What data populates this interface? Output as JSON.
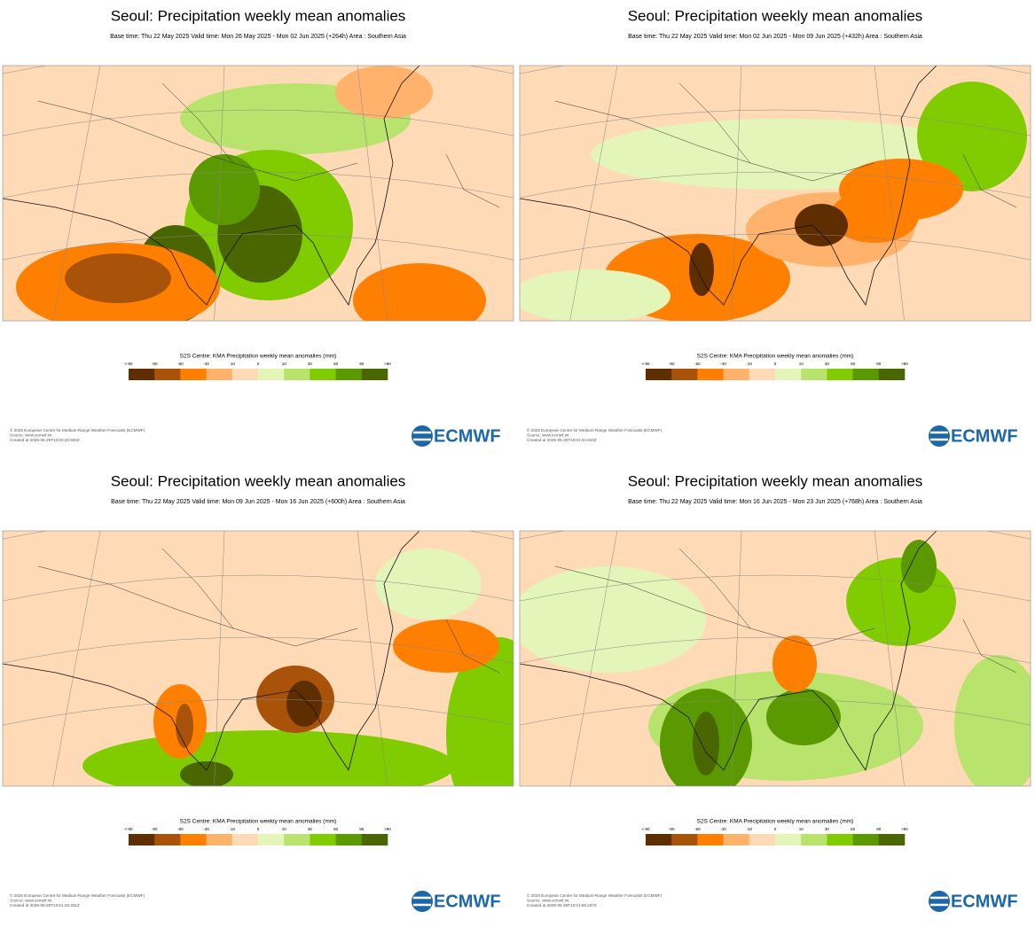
{
  "panels": [
    {
      "title": "Seoul: Precipitation weekly mean anomalies",
      "subtitle": "Base time: Thu 22 May 2025 Valid time: Mon 26 May 2025 - Mon 02 Jun 2025 (+264h) Area : Southern Asia",
      "colorbar_title": "S2S Centre: KMA Precipitation weekly mean anomalies (mm)",
      "colorbar_labels": [
        "<-90",
        "-90",
        "-60",
        "-30",
        "-10",
        "0",
        "10",
        "30",
        "60",
        "90",
        ">90"
      ],
      "colors": [
        "#5e2d00",
        "#a8520a",
        "#ff7f00",
        "#ffb26b",
        "#ffdab6",
        "#e3f5b8",
        "#b8e36c",
        "#80cc00",
        "#5a9a00",
        "#4a6600"
      ],
      "footer": [
        "© 2025 European Centre for Medium-Range Weather Forecasts (ECMWF)",
        "Source: www.ecmwf.int",
        "Created at 2025-05-28T10:00:28.925Z"
      ],
      "logo": "ECMWF"
    },
    {
      "title": "Seoul: Precipitation weekly mean anomalies",
      "subtitle": "Base time: Thu 22 May 2025 Valid time: Mon 02 Jun 2025 - Mon 09 Jun 2025 (+432h) Area : Southern Asia",
      "colorbar_title": "S2S Centre: KMA Precipitation weekly mean anomalies (mm)",
      "colorbar_labels": [
        "<-90",
        "-90",
        "-60",
        "-30",
        "-10",
        "0",
        "10",
        "30",
        "60",
        "90",
        ">90"
      ],
      "colors": [
        "#5e2d00",
        "#a8520a",
        "#ff7f00",
        "#ffb26b",
        "#ffdab6",
        "#e3f5b8",
        "#b8e36c",
        "#80cc00",
        "#5a9a00",
        "#4a6600"
      ],
      "footer": [
        "© 2025 European Centre for Medium-Range Weather Forecasts (ECMWF)",
        "Source: www.ecmwf.int",
        "Created at 2025-05-28T10:01:04.910Z"
      ],
      "logo": "ECMWF"
    },
    {
      "title": "Seoul: Precipitation weekly mean anomalies",
      "subtitle": "Base time: Thu 22 May 2025 Valid time: Mon 09 Jun 2025 - Mon 16 Jun 2025 (+600h) Area : Southern Asia",
      "colorbar_title": "S2S Centre: KMA Precipitation weekly mean anomalies (mm)",
      "colorbar_labels": [
        "<-90",
        "-90",
        "-60",
        "-30",
        "-10",
        "0",
        "10",
        "30",
        "60",
        "90",
        ">90"
      ],
      "colors": [
        "#5e2d00",
        "#a8520a",
        "#ff7f00",
        "#ffb26b",
        "#ffdab6",
        "#e3f5b8",
        "#b8e36c",
        "#80cc00",
        "#5a9a00",
        "#4a6600"
      ],
      "footer": [
        "© 2025 European Centre for Medium-Range Weather Forecasts (ECMWF)",
        "Source: www.ecmwf.int",
        "Created at 2025-05-28T10:01:28.331Z"
      ],
      "logo": "ECMWF"
    },
    {
      "title": "Seoul: Precipitation weekly mean anomalies",
      "subtitle": "Base time: Thu 22 May 2025 Valid time: Mon 16 Jun 2025 - Mon 23 Jun 2025 (+768h) Area : Southern Asia",
      "colorbar_title": "S2S Centre: KMA Precipitation weekly mean anomalies (mm)",
      "colorbar_labels": [
        "<-90",
        "-90",
        "-60",
        "-30",
        "-10",
        "0",
        "10",
        "30",
        "60",
        "90",
        ">90"
      ],
      "colors": [
        "#5e2d00",
        "#a8520a",
        "#ff7f00",
        "#ffb26b",
        "#ffdab6",
        "#e3f5b8",
        "#b8e36c",
        "#80cc00",
        "#5a9a00",
        "#4a6600"
      ],
      "footer": [
        "© 2025 European Centre for Medium-Range Weather Forecasts (ECMWF)",
        "Source: www.ecmwf.int",
        "Created at 2025-05-28T10:01:59.437Z"
      ],
      "logo": "ECMWF"
    }
  ]
}
